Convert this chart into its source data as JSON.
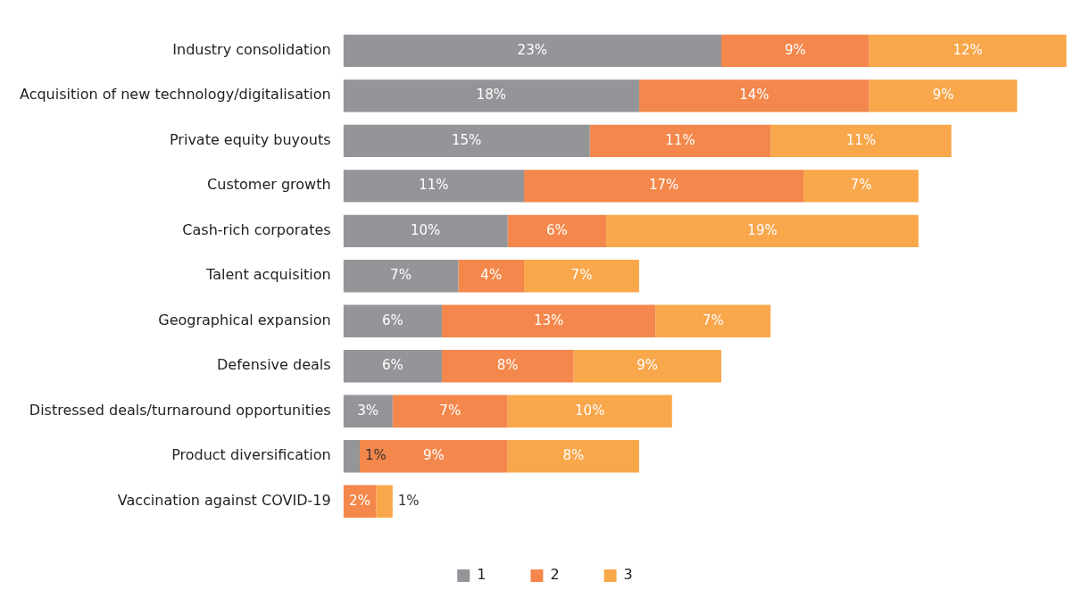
{
  "chart_data": {
    "type": "bar",
    "orientation": "horizontal",
    "stacked": true,
    "legend": "bottom",
    "tick_labels": "y",
    "categories": [
      "Industry consolidation",
      "Acquisition of new technology/digitalisation",
      "Private equity buyouts",
      "Customer growth",
      "Cash-rich corporates",
      "Talent acquisition",
      "Geographical expansion",
      "Defensive deals",
      "Distressed deals/turnaround opportunities",
      "Product diversification",
      "Vaccination against COVID-19"
    ],
    "series": [
      {
        "name": "1",
        "color": "#939598",
        "values": [
          23,
          18,
          15,
          11,
          10,
          7,
          6,
          6,
          3,
          1,
          null
        ],
        "value_labels": [
          "23%",
          "18%",
          "15%",
          "11%",
          "10%",
          "7%",
          "6%",
          "6%",
          "3%",
          "1%",
          null
        ]
      },
      {
        "name": "2",
        "color": "#f4874b",
        "values": [
          9,
          14,
          11,
          17,
          6,
          4,
          13,
          8,
          7,
          9,
          2
        ],
        "value_labels": [
          "9%",
          "14%",
          "11%",
          "17%",
          "6%",
          "4%",
          "13%",
          "8%",
          "7%",
          "9%",
          "2%"
        ]
      },
      {
        "name": "3",
        "color": "#f9a74b",
        "values": [
          12,
          9,
          11,
          7,
          19,
          7,
          7,
          9,
          10,
          8,
          1
        ],
        "value_labels": [
          "12%",
          "9%",
          "11%",
          "7%",
          "19%",
          "7%",
          "7%",
          "9%",
          "10%",
          "8%",
          "1%"
        ]
      }
    ]
  }
}
